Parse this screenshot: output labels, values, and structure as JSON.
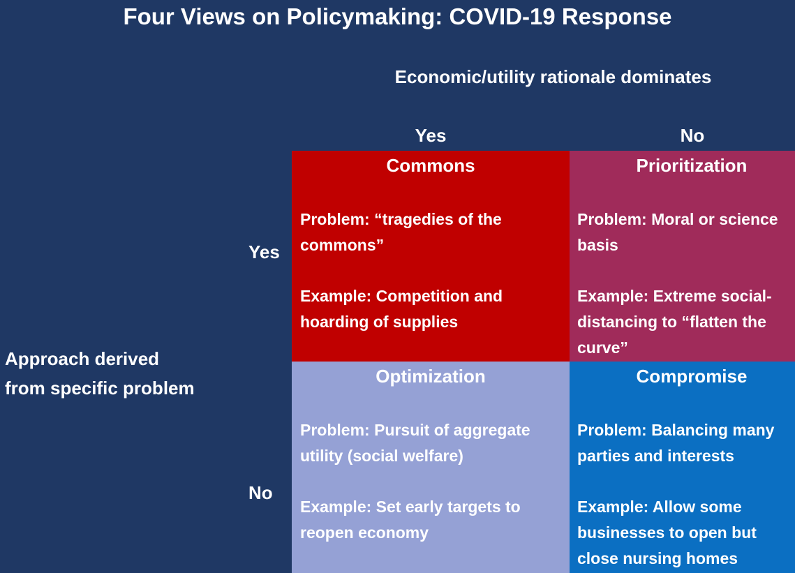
{
  "title": "Four Views on Policymaking: COVID-19 Response",
  "column_header": "Economic/utility rationale dominates",
  "column_labels": {
    "yes": "Yes",
    "no": "No"
  },
  "row_header": [
    "Approach derived",
    "from specific problem"
  ],
  "row_labels": {
    "yes": "Yes",
    "no": "No"
  },
  "cells": {
    "commons": {
      "title": "Commons",
      "color": "#c00000",
      "problem": "Problem: “tragedies of the commons”",
      "example": "Example: Competition and hoarding of supplies"
    },
    "prioritization": {
      "title": "Prioritization",
      "color": "#a02b5a",
      "problem": "Problem: Moral or science basis",
      "example": "Example: Extreme social-distancing to “flatten the curve”"
    },
    "optimization": {
      "title": "Optimization",
      "color": "#95a1d5",
      "problem": "Problem: Pursuit of aggregate utility (social welfare)",
      "example": "Example: Set early targets to reopen economy"
    },
    "compromise": {
      "title": "Compromise",
      "color": "#0b6fc2",
      "problem": "Problem: Balancing many parties and interests",
      "example": "Example: Allow some businesses to open but close nursing homes"
    }
  },
  "colors": {
    "background": "#1f3864",
    "text": "#ffffff"
  }
}
